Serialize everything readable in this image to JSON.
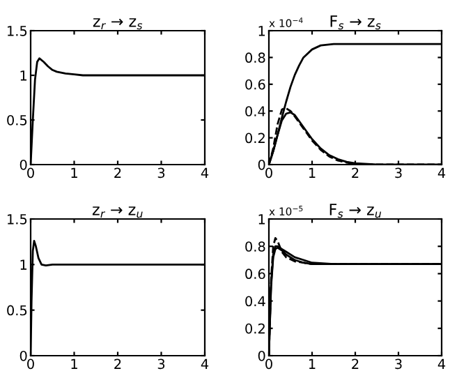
{
  "chart_data": [
    {
      "type": "line",
      "title": "z$_{r}$ → z$_{s}$",
      "xlim": [
        0,
        4
      ],
      "ylim": [
        0,
        1.5
      ],
      "xticks": [
        0,
        1,
        2,
        3,
        4
      ],
      "yticks": [
        0,
        0.5,
        1,
        1.5
      ],
      "series": [
        {
          "color": "#000000",
          "line_style": "solid",
          "x": [
            0,
            0.05,
            0.1,
            0.15,
            0.2,
            0.3,
            0.4,
            0.5,
            0.6,
            0.8,
            1.0,
            1.2,
            1.5,
            2,
            3,
            4
          ],
          "values": [
            0,
            0.5,
            0.95,
            1.15,
            1.19,
            1.15,
            1.1,
            1.06,
            1.04,
            1.02,
            1.01,
            1.0,
            1.0,
            1,
            1,
            1
          ]
        }
      ]
    },
    {
      "type": "line",
      "title": "F$_{s}$ → z$_{s}$",
      "annotations": [
        "x 10$^{−4}$"
      ],
      "xlim": [
        0,
        4
      ],
      "ylim": [
        0,
        1
      ],
      "xticks": [
        0,
        1,
        2,
        3,
        4
      ],
      "yticks": [
        0,
        0.2,
        0.4,
        0.6,
        0.8,
        1
      ],
      "series": [
        {
          "color": "#000000",
          "line_style": "solid",
          "x": [
            0,
            0.1,
            0.2,
            0.3,
            0.4,
            0.5,
            0.6,
            0.7,
            0.8,
            1.0,
            1.2,
            1.5,
            2,
            3,
            4
          ],
          "values": [
            0,
            0.1,
            0.22,
            0.35,
            0.47,
            0.58,
            0.67,
            0.74,
            0.8,
            0.86,
            0.89,
            0.9,
            0.9,
            0.9,
            0.9
          ]
        },
        {
          "color": "#000000",
          "line_style": "dashed",
          "x": [
            0,
            0.1,
            0.2,
            0.3,
            0.35,
            0.4,
            0.5,
            0.6,
            0.8,
            1.0,
            1.2,
            1.4,
            1.6,
            1.8,
            2.0,
            2.5,
            3,
            4
          ],
          "values": [
            0,
            0.12,
            0.3,
            0.41,
            0.42,
            0.42,
            0.4,
            0.36,
            0.27,
            0.18,
            0.11,
            0.06,
            0.03,
            0.015,
            0.005,
            0,
            0,
            0
          ]
        },
        {
          "color": "#000000",
          "line_style": "solid",
          "x": [
            0,
            0.1,
            0.2,
            0.3,
            0.4,
            0.5,
            0.6,
            0.8,
            1.0,
            1.2,
            1.4,
            1.6,
            1.8,
            2.0,
            2.5,
            3,
            4
          ],
          "values": [
            0,
            0.1,
            0.22,
            0.33,
            0.38,
            0.39,
            0.37,
            0.28,
            0.19,
            0.12,
            0.07,
            0.04,
            0.02,
            0.01,
            0,
            0,
            0
          ]
        }
      ]
    },
    {
      "type": "line",
      "title": "z$_{r}$ → z$_{u}$",
      "xlim": [
        0,
        4
      ],
      "ylim": [
        0,
        1.5
      ],
      "xticks": [
        0,
        1,
        2,
        3,
        4
      ],
      "yticks": [
        0,
        0.5,
        1,
        1.5
      ],
      "series": [
        {
          "color": "#000000",
          "line_style": "solid",
          "x": [
            0,
            0.02,
            0.05,
            0.08,
            0.12,
            0.18,
            0.25,
            0.35,
            0.5,
            1,
            2,
            4
          ],
          "values": [
            0,
            0.6,
            1.15,
            1.26,
            1.2,
            1.07,
            1.0,
            0.99,
            1.0,
            1,
            1,
            1
          ]
        }
      ]
    },
    {
      "type": "line",
      "title": "F$_{s}$ → z$_{u}$",
      "annotations": [
        "x 10$^{−5}$"
      ],
      "xlim": [
        0,
        4
      ],
      "ylim": [
        0,
        1
      ],
      "xticks": [
        0,
        1,
        2,
        3,
        4
      ],
      "yticks": [
        0,
        0.2,
        0.4,
        0.6,
        0.8,
        1
      ],
      "series": [
        {
          "color": "#000000",
          "line_style": "solid",
          "x": [
            0,
            0.05,
            0.1,
            0.15,
            0.2,
            0.3,
            0.4,
            0.6,
            0.8,
            1.0,
            1.5,
            2,
            4
          ],
          "values": [
            0,
            0.5,
            0.72,
            0.78,
            0.79,
            0.77,
            0.74,
            0.7,
            0.68,
            0.67,
            0.67,
            0.67,
            0.67
          ]
        },
        {
          "color": "#000000",
          "line_style": "solid",
          "x": [
            0,
            0.05,
            0.1,
            0.15,
            0.2,
            0.3,
            0.4,
            0.6,
            0.8,
            1,
            1.5,
            2,
            4
          ],
          "values": [
            0,
            0.52,
            0.74,
            0.8,
            0.8,
            0.78,
            0.76,
            0.72,
            0.7,
            0.68,
            0.67,
            0.67,
            0.67
          ]
        },
        {
          "color": "#000000",
          "line_style": "dashed",
          "x": [
            0,
            0.05,
            0.1,
            0.15,
            0.2,
            0.25,
            0.3,
            0.4,
            0.6,
            0.8,
            1,
            2,
            4
          ],
          "values": [
            0,
            0.55,
            0.8,
            0.86,
            0.84,
            0.8,
            0.76,
            0.72,
            0.69,
            0.68,
            0.67,
            0.67,
            0.67
          ]
        }
      ]
    }
  ]
}
